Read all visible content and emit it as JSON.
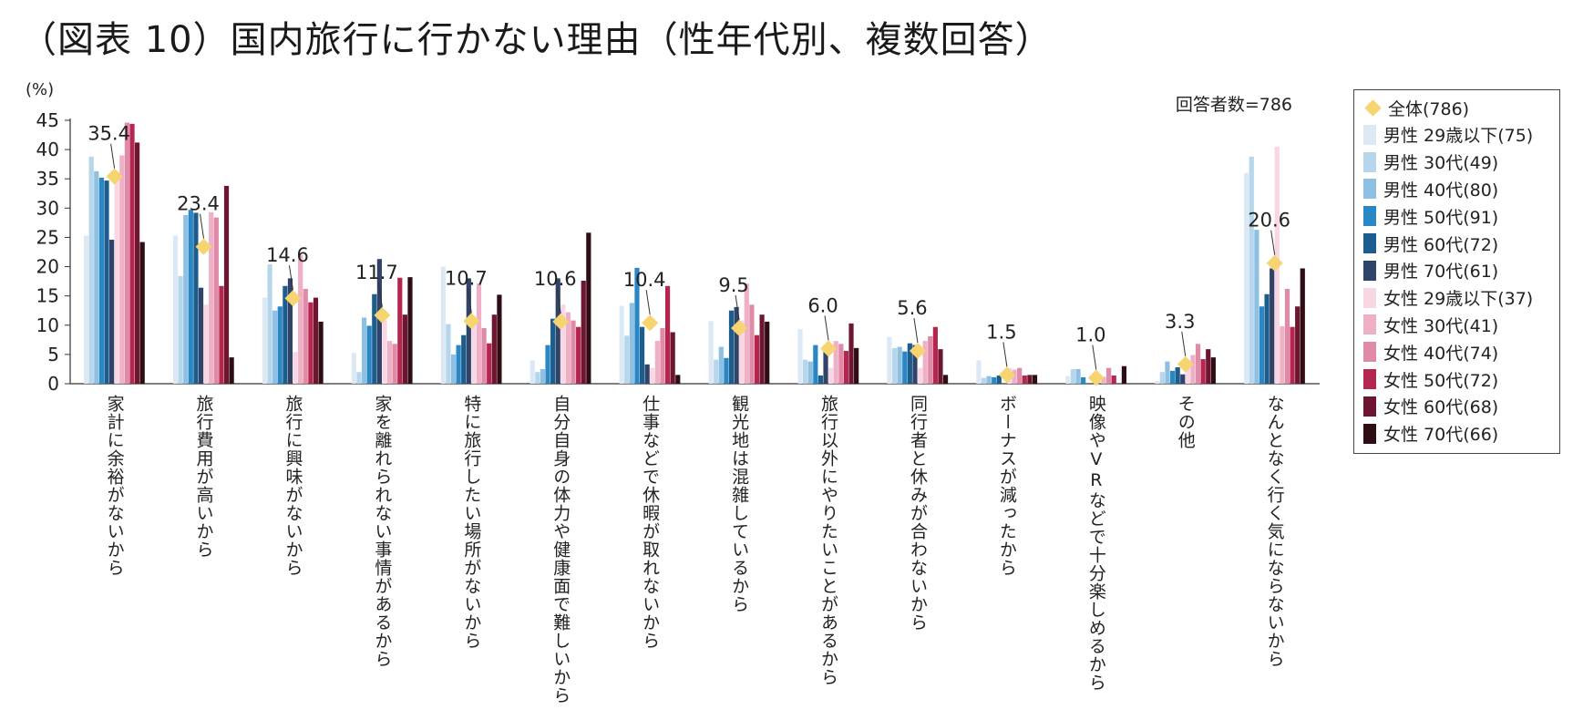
{
  "title": "（図表 10）国内旅行に行かない理由（性年代別、複数回答）",
  "chart_data": {
    "type": "bar",
    "title": "（図表 10）国内旅行に行かない理由（性年代別、複数回答）",
    "ylabel": "(%)",
    "ylim": [
      0,
      45
    ],
    "yticks": [
      "0",
      "5",
      "10",
      "15",
      "20",
      "25",
      "30",
      "35",
      "40",
      "45"
    ],
    "sample_note": "回答者数=786",
    "categories": [
      "家計に余裕がないから",
      "旅行費用が高いから",
      "旅行に興味がないから",
      "家を離れられない事情があるから",
      "特に旅行したい場所がないから",
      "自分自身の体力や健康面で難しいから",
      "仕事などで休暇が取れないから",
      "観光地は混雑しているから",
      "旅行以外にやりたいことがあるから",
      "同行者と休みが合わないから",
      "ボーナスが減ったから",
      "映像やVRなどで十分楽しめるから",
      "その他",
      "なんとなく行く気にならないから"
    ],
    "overall": {
      "name": "全体(786)",
      "color": "#f6d470",
      "values": [
        35.4,
        23.4,
        14.6,
        11.7,
        10.7,
        10.6,
        10.4,
        9.5,
        6.0,
        5.6,
        1.5,
        1.0,
        3.3,
        20.6
      ],
      "labels": [
        "35.4",
        "23.4",
        "14.6",
        "11.7",
        "10.7",
        "10.6",
        "10.4",
        "9.5",
        "6.0",
        "5.6",
        "1.5",
        "1.0",
        "3.3",
        "20.6"
      ]
    },
    "series": [
      {
        "name": "男性 29歳以下(75)",
        "color": "#dce9f5",
        "values": [
          25.3,
          25.3,
          14.7,
          5.3,
          20.0,
          4.0,
          13.3,
          10.7,
          9.3,
          8.0,
          4.0,
          1.3,
          0.5,
          36.0
        ]
      },
      {
        "name": "男性 30代(49)",
        "color": "#b6d6ec",
        "values": [
          38.8,
          18.4,
          20.4,
          2.0,
          10.2,
          2.0,
          8.2,
          4.1,
          4.1,
          6.1,
          1.0,
          2.5,
          2.0,
          38.8
        ]
      },
      {
        "name": "男性 40代(80)",
        "color": "#8dc0e3",
        "values": [
          36.3,
          28.8,
          12.5,
          11.3,
          5.0,
          2.5,
          13.8,
          6.3,
          3.8,
          6.3,
          1.3,
          2.5,
          3.8,
          26.3
        ]
      },
      {
        "name": "男性 50代(91)",
        "color": "#2a87c5",
        "values": [
          35.2,
          29.7,
          13.2,
          9.9,
          6.6,
          6.6,
          19.8,
          4.4,
          6.6,
          5.5,
          1.1,
          1.1,
          2.2,
          13.2
        ]
      },
      {
        "name": "男性 60代(72)",
        "color": "#1c5d8d",
        "values": [
          34.7,
          29.2,
          16.7,
          15.3,
          8.3,
          11.1,
          9.7,
          12.5,
          1.4,
          6.9,
          1.4,
          0.0,
          2.8,
          15.3
        ]
      },
      {
        "name": "男性 70代(61)",
        "color": "#2f4468",
        "values": [
          24.6,
          16.4,
          18.0,
          21.3,
          18.0,
          18.0,
          3.3,
          13.1,
          6.6,
          6.6,
          0.0,
          0.0,
          1.6,
          19.7
        ]
      },
      {
        "name": "女性 29歳以下(37)",
        "color": "#f8d6e3",
        "values": [
          35.1,
          13.5,
          5.4,
          10.8,
          10.8,
          13.5,
          2.7,
          10.8,
          2.7,
          2.7,
          2.7,
          0.0,
          2.7,
          40.5
        ]
      },
      {
        "name": "女性 30代(41)",
        "color": "#efb0c6",
        "values": [
          39.0,
          29.3,
          22.0,
          7.3,
          17.1,
          12.2,
          7.3,
          17.1,
          7.3,
          7.3,
          2.4,
          1.2,
          4.9,
          9.8
        ]
      },
      {
        "name": "女性 40代(74)",
        "color": "#e08aa7",
        "values": [
          44.6,
          28.4,
          16.2,
          6.8,
          9.5,
          10.8,
          9.5,
          13.5,
          6.8,
          8.1,
          2.7,
          2.7,
          6.8,
          16.2
        ]
      },
      {
        "name": "女性 50代(72)",
        "color": "#b5264e",
        "values": [
          44.4,
          16.7,
          13.9,
          18.1,
          6.9,
          9.7,
          16.7,
          8.3,
          5.6,
          9.7,
          1.4,
          1.4,
          4.2,
          9.7
        ]
      },
      {
        "name": "女性 60代(68)",
        "color": "#6e1530",
        "values": [
          41.2,
          33.8,
          14.7,
          11.8,
          11.8,
          17.6,
          8.8,
          11.8,
          10.3,
          5.9,
          1.5,
          0.0,
          5.9,
          13.2
        ]
      },
      {
        "name": "女性 70代(66)",
        "color": "#2e0e14",
        "values": [
          24.2,
          4.5,
          10.6,
          18.2,
          15.2,
          25.8,
          1.5,
          10.6,
          6.1,
          1.5,
          1.5,
          3.0,
          4.5,
          19.7
        ]
      }
    ],
    "legend_position": "right"
  }
}
